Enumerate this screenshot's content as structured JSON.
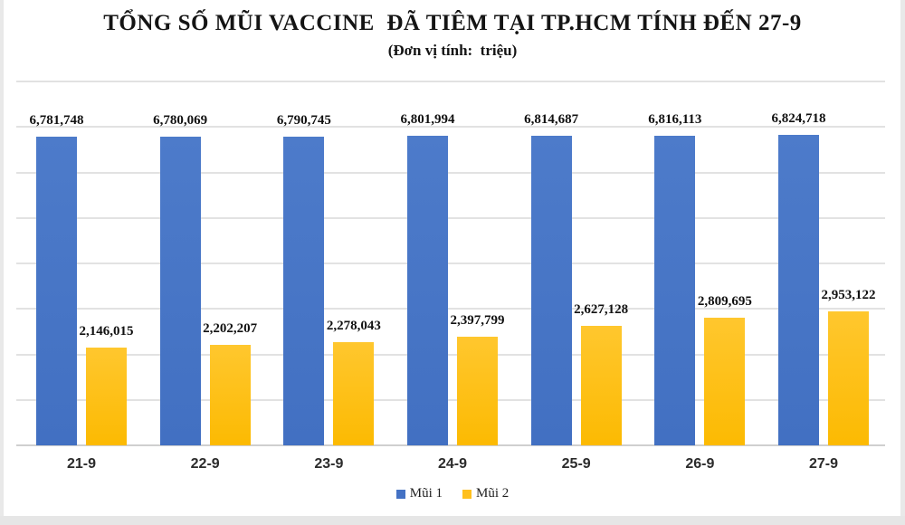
{
  "chart_data": {
    "type": "bar",
    "title": "TỔNG SỐ MŨI VACCINE  ĐÃ TIÊM TẠI TP.HCM TÍNH ĐẾN 27-9",
    "subtitle": "(Đơn vị tính:  triệu)",
    "categories": [
      "21-9",
      "22-9",
      "23-9",
      "24-9",
      "25-9",
      "26-9",
      "27-9"
    ],
    "series": [
      {
        "name": "Mũi 1",
        "color": "#4472C4",
        "values": [
          6781748,
          6780069,
          6790745,
          6801994,
          6814687,
          6816113,
          6824718
        ],
        "labels": [
          "6,781,748",
          "6,780,069",
          "6,790,745",
          "6,801,994",
          "6,814,687",
          "6,816,113",
          "6,824,718"
        ]
      },
      {
        "name": "Mũi 2",
        "color": "#FFC01E",
        "values": [
          2146015,
          2202207,
          2278043,
          2397799,
          2627128,
          2809695,
          2953122
        ],
        "labels": [
          "2,146,015",
          "2,202,207",
          "2,278,043",
          "2,397,799",
          "2,627,128",
          "2,809,695",
          "2,953,122"
        ]
      }
    ],
    "ylim": [
      0,
      8000000
    ],
    "gridline_interval": 1000000,
    "grid": true,
    "y_axis_labels_visible": false,
    "data_labels": true,
    "legend_position": "bottom",
    "gridline_color": "#e2e2e2"
  }
}
